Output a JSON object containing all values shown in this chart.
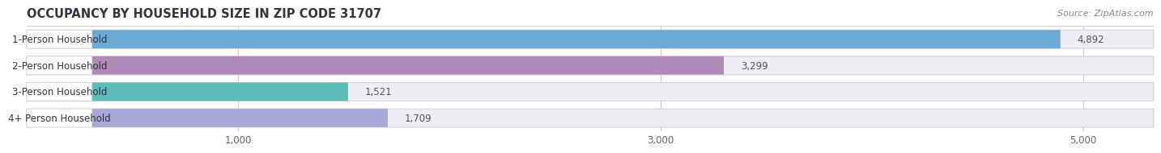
{
  "title": "OCCUPANCY BY HOUSEHOLD SIZE IN ZIP CODE 31707",
  "source": "Source: ZipAtlas.com",
  "categories": [
    "1-Person Household",
    "2-Person Household",
    "3-Person Household",
    "4+ Person Household"
  ],
  "values": [
    4892,
    3299,
    1521,
    1709
  ],
  "bar_colors": [
    "#6aaad4",
    "#b08ab8",
    "#5bbcb8",
    "#a8a8d8"
  ],
  "xlim_max": 5333,
  "xticks": [
    1000,
    3000,
    5000
  ],
  "tick_labels": [
    "1,000",
    "3,000",
    "5,000"
  ],
  "background_color": "#ffffff",
  "bar_bg_color": "#ededf2",
  "title_color": "#333344",
  "source_color": "#888888",
  "label_color": "#333333",
  "value_color": "#555555",
  "title_fontsize": 10.5,
  "source_fontsize": 8,
  "label_fontsize": 8.5,
  "value_fontsize": 8.5,
  "tick_fontsize": 8.5,
  "bar_height": 0.7,
  "bar_gap": 0.15,
  "rounding_size": 0.35
}
